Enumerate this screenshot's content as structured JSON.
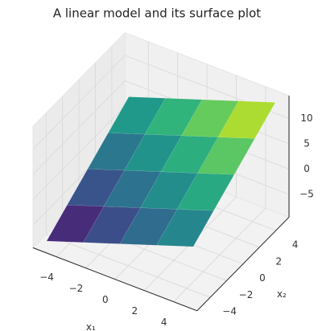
{
  "chart_data": {
    "type": "surface",
    "title": "A linear model and its surface plot",
    "x_label": "x₁",
    "y_label": "x₂",
    "x": [
      -5,
      -2.5,
      0,
      2.5,
      5
    ],
    "y": [
      -5,
      -2.5,
      0,
      2.5,
      5
    ],
    "z": [
      [
        -8.5,
        -6,
        -3.5,
        -1,
        1.5
      ],
      [
        -5.5,
        -3,
        -0.5,
        2,
        4.5
      ],
      [
        -2.5,
        0,
        2.5,
        5,
        7.5
      ],
      [
        0.5,
        3,
        5.5,
        8,
        10.5
      ],
      [
        3.5,
        6,
        8.5,
        11,
        13.5
      ]
    ],
    "xlim": [
      -5.6,
      5.6
    ],
    "ylim": [
      -5.6,
      5.6
    ],
    "zlim": [
      -9.5,
      14.5
    ],
    "xticks": [
      {
        "value": -4,
        "label": "−4"
      },
      {
        "value": -2,
        "label": "−2"
      },
      0,
      2,
      4
    ],
    "yticks": [
      {
        "value": -4,
        "label": "−4"
      },
      {
        "value": -2,
        "label": "−2"
      },
      0,
      2,
      4
    ],
    "zticks": [
      {
        "value": -5,
        "label": "−5"
      },
      0,
      5,
      10
    ],
    "colormap": "viridis",
    "grid": true
  }
}
